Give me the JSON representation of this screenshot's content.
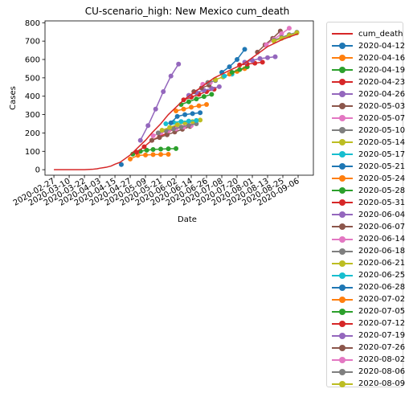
{
  "chart_data": {
    "type": "line",
    "title": "CU-scenario_high: New Mexico cum_death",
    "xlabel": "Date",
    "ylabel": "Cases",
    "ylim": [
      -30,
      810
    ],
    "xlim": [
      "2020-02-20",
      "2020-09-18"
    ],
    "grid": false,
    "legend_placement": "outside-right",
    "x_ticks": [
      "2020-02-27",
      "2020-03-10",
      "2020-03-22",
      "2020-04-03",
      "2020-04-15",
      "2020-04-27",
      "2020-05-09",
      "2020-05-21",
      "2020-06-02",
      "2020-06-14",
      "2020-06-26",
      "2020-07-08",
      "2020-07-20",
      "2020-08-01",
      "2020-08-13",
      "2020-08-25",
      "2020-09-06"
    ],
    "y_ticks": [
      0,
      100,
      200,
      300,
      400,
      500,
      600,
      700,
      800
    ],
    "observed": {
      "name": "cum_death",
      "color": "#d62728",
      "points": [
        {
          "x": "2020-02-27",
          "y": 0
        },
        {
          "x": "2020-03-10",
          "y": 0
        },
        {
          "x": "2020-03-22",
          "y": 0
        },
        {
          "x": "2020-03-28",
          "y": 2
        },
        {
          "x": "2020-04-01",
          "y": 5
        },
        {
          "x": "2020-04-03",
          "y": 8
        },
        {
          "x": "2020-04-08",
          "y": 13
        },
        {
          "x": "2020-04-12",
          "y": 20
        },
        {
          "x": "2020-04-15",
          "y": 30
        },
        {
          "x": "2020-04-19",
          "y": 40
        },
        {
          "x": "2020-04-23",
          "y": 60
        },
        {
          "x": "2020-04-27",
          "y": 80
        },
        {
          "x": "2020-05-03",
          "y": 120
        },
        {
          "x": "2020-05-09",
          "y": 160
        },
        {
          "x": "2020-05-14",
          "y": 200
        },
        {
          "x": "2020-05-21",
          "y": 250
        },
        {
          "x": "2020-05-27",
          "y": 300
        },
        {
          "x": "2020-06-02",
          "y": 340
        },
        {
          "x": "2020-06-08",
          "y": 380
        },
        {
          "x": "2020-06-14",
          "y": 410
        },
        {
          "x": "2020-06-20",
          "y": 440
        },
        {
          "x": "2020-06-26",
          "y": 470
        },
        {
          "x": "2020-07-02",
          "y": 500
        },
        {
          "x": "2020-07-08",
          "y": 520
        },
        {
          "x": "2020-07-14",
          "y": 540
        },
        {
          "x": "2020-07-20",
          "y": 560
        },
        {
          "x": "2020-07-26",
          "y": 580
        },
        {
          "x": "2020-08-01",
          "y": 610
        },
        {
          "x": "2020-08-07",
          "y": 640
        },
        {
          "x": "2020-08-13",
          "y": 670
        },
        {
          "x": "2020-08-19",
          "y": 690
        },
        {
          "x": "2020-08-25",
          "y": 710
        },
        {
          "x": "2020-08-31",
          "y": 725
        },
        {
          "x": "2020-09-06",
          "y": 740
        }
      ]
    },
    "series": [
      {
        "name": "2020-04-12",
        "color": "#1f77b4",
        "points": [
          [
            "2020-04-20",
            28
          ]
        ]
      },
      {
        "name": "2020-04-16",
        "color": "#ff7f0e",
        "points": [
          [
            "2020-04-27",
            58
          ],
          [
            "2020-05-03",
            78
          ],
          [
            "2020-05-09",
            80
          ],
          [
            "2020-05-15",
            82
          ],
          [
            "2020-05-21",
            83
          ],
          [
            "2020-05-27",
            84
          ]
        ]
      },
      {
        "name": "2020-04-19",
        "color": "#2ca02c",
        "points": [
          [
            "2020-04-29",
            85
          ],
          [
            "2020-05-05",
            100
          ],
          [
            "2020-05-10",
            106
          ],
          [
            "2020-05-15",
            110
          ],
          [
            "2020-05-21",
            112
          ],
          [
            "2020-05-27",
            114
          ],
          [
            "2020-06-02",
            115
          ]
        ]
      },
      {
        "name": "2020-04-23",
        "color": "#d62728",
        "points": [
          [
            "2020-05-02",
            95
          ],
          [
            "2020-05-08",
            125
          ],
          [
            "2020-05-14",
            160
          ],
          [
            "2020-05-20",
            180
          ],
          [
            "2020-05-26",
            200
          ],
          [
            "2020-06-01",
            225
          ]
        ]
      },
      {
        "name": "2020-04-26",
        "color": "#9467bd",
        "points": [
          [
            "2020-05-05",
            160
          ],
          [
            "2020-05-11",
            240
          ],
          [
            "2020-05-17",
            330
          ],
          [
            "2020-05-23",
            425
          ],
          [
            "2020-05-29",
            510
          ],
          [
            "2020-06-04",
            575
          ]
        ]
      },
      {
        "name": "2020-05-03",
        "color": "#8c564b",
        "points": [
          [
            "2020-05-14",
            160
          ],
          [
            "2020-05-20",
            175
          ],
          [
            "2020-05-26",
            190
          ],
          [
            "2020-06-01",
            205
          ],
          [
            "2020-06-07",
            220
          ],
          [
            "2020-06-13",
            235
          ]
        ]
      },
      {
        "name": "2020-05-07",
        "color": "#e377c2",
        "points": [
          [
            "2020-05-15",
            185
          ],
          [
            "2020-05-21",
            200
          ],
          [
            "2020-05-27",
            212
          ],
          [
            "2020-06-02",
            222
          ],
          [
            "2020-06-08",
            232
          ],
          [
            "2020-06-14",
            240
          ]
        ]
      },
      {
        "name": "2020-05-10",
        "color": "#7f7f7f",
        "points": [
          [
            "2020-05-19",
            200
          ],
          [
            "2020-05-25",
            212
          ],
          [
            "2020-05-31",
            222
          ],
          [
            "2020-06-06",
            232
          ],
          [
            "2020-06-12",
            242
          ],
          [
            "2020-06-18",
            250
          ]
        ]
      },
      {
        "name": "2020-05-14",
        "color": "#bcbd22",
        "points": [
          [
            "2020-05-22",
            215
          ],
          [
            "2020-05-28",
            230
          ],
          [
            "2020-06-03",
            245
          ],
          [
            "2020-06-09",
            255
          ],
          [
            "2020-06-15",
            262
          ],
          [
            "2020-06-21",
            270
          ]
        ]
      },
      {
        "name": "2020-05-17",
        "color": "#17becf",
        "points": [
          [
            "2020-05-25",
            250
          ],
          [
            "2020-05-31",
            258
          ],
          [
            "2020-06-06",
            262
          ],
          [
            "2020-06-12",
            265
          ],
          [
            "2020-06-18",
            268
          ]
        ]
      },
      {
        "name": "2020-05-21",
        "color": "#1f77b4",
        "points": [
          [
            "2020-05-29",
            255
          ],
          [
            "2020-06-03",
            290
          ],
          [
            "2020-06-09",
            300
          ],
          [
            "2020-06-15",
            305
          ],
          [
            "2020-06-21",
            310
          ]
        ]
      },
      {
        "name": "2020-05-24",
        "color": "#ff7f0e",
        "points": [
          [
            "2020-06-02",
            320
          ],
          [
            "2020-06-08",
            330
          ],
          [
            "2020-06-14",
            340
          ],
          [
            "2020-06-20",
            348
          ],
          [
            "2020-06-26",
            355
          ]
        ]
      },
      {
        "name": "2020-05-28",
        "color": "#2ca02c",
        "points": [
          [
            "2020-06-06",
            355
          ],
          [
            "2020-06-12",
            370
          ],
          [
            "2020-06-18",
            385
          ],
          [
            "2020-06-24",
            398
          ],
          [
            "2020-06-30",
            410
          ]
        ]
      },
      {
        "name": "2020-05-31",
        "color": "#d62728",
        "points": [
          [
            "2020-06-08",
            380
          ],
          [
            "2020-06-14",
            395
          ],
          [
            "2020-06-20",
            410
          ],
          [
            "2020-06-26",
            425
          ],
          [
            "2020-07-02",
            438
          ]
        ]
      },
      {
        "name": "2020-06-04",
        "color": "#9467bd",
        "points": [
          [
            "2020-06-12",
            405
          ],
          [
            "2020-06-18",
            420
          ],
          [
            "2020-06-24",
            432
          ],
          [
            "2020-06-30",
            442
          ],
          [
            "2020-07-06",
            452
          ]
        ]
      },
      {
        "name": "2020-06-07",
        "color": "#8c564b",
        "points": [
          [
            "2020-06-16",
            425
          ],
          [
            "2020-06-22",
            445
          ],
          [
            "2020-06-28",
            460
          ]
        ]
      },
      {
        "name": "2020-06-14",
        "color": "#e377c2",
        "points": [
          [
            "2020-06-23",
            465
          ],
          [
            "2020-06-29",
            475
          ]
        ]
      },
      {
        "name": "2020-06-18",
        "color": "#7f7f7f",
        "points": [
          [
            "2020-06-27",
            475
          ],
          [
            "2020-07-03",
            485
          ]
        ]
      },
      {
        "name": "2020-06-21",
        "color": "#bcbd22",
        "points": [
          [
            "2020-07-03",
            490
          ],
          [
            "2020-07-09",
            505
          ]
        ]
      },
      {
        "name": "2020-06-25",
        "color": "#17becf",
        "points": [
          [
            "2020-07-10",
            510
          ],
          [
            "2020-07-16",
            520
          ]
        ]
      },
      {
        "name": "2020-06-28",
        "color": "#1f77b4",
        "points": [
          [
            "2020-07-08",
            530
          ],
          [
            "2020-07-14",
            560
          ],
          [
            "2020-07-20",
            600
          ],
          [
            "2020-07-26",
            655
          ]
        ]
      },
      {
        "name": "2020-07-02",
        "color": "#ff7f0e",
        "points": [
          [
            "2020-07-14",
            520
          ],
          [
            "2020-07-20",
            535
          ],
          [
            "2020-07-26",
            550
          ]
        ]
      },
      {
        "name": "2020-07-05",
        "color": "#2ca02c",
        "points": [
          [
            "2020-07-16",
            530
          ],
          [
            "2020-07-22",
            545
          ],
          [
            "2020-07-28",
            560
          ]
        ]
      },
      {
        "name": "2020-07-12",
        "color": "#d62728",
        "points": [
          [
            "2020-07-22",
            570
          ],
          [
            "2020-07-28",
            575
          ],
          [
            "2020-08-03",
            580
          ],
          [
            "2020-08-09",
            585
          ]
        ]
      },
      {
        "name": "2020-07-19",
        "color": "#9467bd",
        "points": [
          [
            "2020-07-26",
            585
          ],
          [
            "2020-08-01",
            595
          ],
          [
            "2020-08-07",
            605
          ],
          [
            "2020-08-13",
            610
          ],
          [
            "2020-08-19",
            615
          ]
        ]
      },
      {
        "name": "2020-07-26",
        "color": "#8c564b",
        "points": [
          [
            "2020-08-05",
            640
          ],
          [
            "2020-08-11",
            680
          ],
          [
            "2020-08-17",
            715
          ],
          [
            "2020-08-23",
            755
          ]
        ]
      },
      {
        "name": "2020-08-02",
        "color": "#e377c2",
        "points": [
          [
            "2020-08-12",
            680
          ],
          [
            "2020-08-18",
            710
          ],
          [
            "2020-08-24",
            740
          ],
          [
            "2020-08-30",
            770
          ]
        ]
      },
      {
        "name": "2020-08-06",
        "color": "#7f7f7f",
        "points": [
          [
            "2020-08-18",
            705
          ],
          [
            "2020-08-24",
            720
          ],
          [
            "2020-08-30",
            735
          ],
          [
            "2020-09-05",
            748
          ]
        ]
      },
      {
        "name": "2020-08-09",
        "color": "#bcbd22",
        "points": [
          [
            "2020-08-18",
            700
          ],
          [
            "2020-08-24",
            715
          ],
          [
            "2020-08-30",
            730
          ],
          [
            "2020-09-05",
            745
          ]
        ]
      }
    ]
  }
}
